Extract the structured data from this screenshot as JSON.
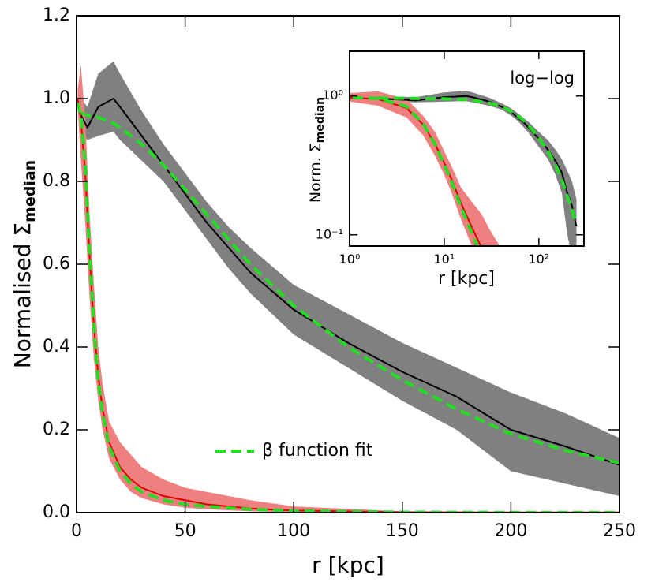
{
  "chart_data": {
    "type": "line",
    "xlabel": "r [kpc]",
    "ylabel": "Normalised Σ",
    "ylabel_sub": "median",
    "xlim": [
      0,
      250
    ],
    "ylim": [
      0,
      1.2
    ],
    "xticks": [
      0,
      50,
      100,
      150,
      200,
      250
    ],
    "yticks": [
      {
        "value": 0,
        "label": "0.0"
      },
      {
        "value": 0.2,
        "label": "0.2"
      },
      {
        "value": 0.4,
        "label": "0.4"
      },
      {
        "value": 0.6,
        "label": "0.6"
      },
      {
        "value": 0.8,
        "label": "0.8"
      },
      {
        "value": 1,
        "label": "1.0"
      },
      {
        "value": 1.2,
        "label": "1.2"
      }
    ],
    "fit_legend": "β function fit",
    "series": [
      {
        "color": "#000000",
        "band_color": "#808080",
        "fit_color": "#22dd22",
        "x": [
          2,
          5,
          10,
          17,
          20,
          30,
          40,
          50,
          60,
          70,
          80,
          100,
          125,
          150,
          175,
          200,
          225,
          250
        ],
        "values": [
          0.96,
          0.93,
          0.98,
          1.0,
          0.98,
          0.91,
          0.84,
          0.77,
          0.7,
          0.64,
          0.58,
          0.49,
          0.41,
          0.34,
          0.28,
          0.2,
          0.16,
          0.115
        ],
        "lower": [
          0.92,
          0.9,
          0.91,
          0.92,
          0.9,
          0.85,
          0.8,
          0.73,
          0.66,
          0.59,
          0.53,
          0.43,
          0.35,
          0.27,
          0.2,
          0.1,
          0.07,
          0.04
        ],
        "upper": [
          1.0,
          0.98,
          1.06,
          1.09,
          1.06,
          0.97,
          0.89,
          0.82,
          0.75,
          0.69,
          0.64,
          0.55,
          0.48,
          0.41,
          0.35,
          0.29,
          0.24,
          0.18
        ],
        "fit": [
          0.965,
          0.96,
          0.955,
          0.94,
          0.93,
          0.89,
          0.84,
          0.78,
          0.72,
          0.66,
          0.6,
          0.5,
          0.4,
          0.32,
          0.25,
          0.19,
          0.15,
          0.12
        ]
      },
      {
        "color": "#dd0000",
        "band_color": "#f08080",
        "fit_color": "#22dd22",
        "x": [
          0.5,
          2,
          4,
          6,
          8,
          10,
          12,
          15,
          20,
          25,
          30,
          40,
          50,
          60,
          80,
          100,
          150,
          200,
          250
        ],
        "values": [
          1.0,
          0.95,
          0.82,
          0.62,
          0.45,
          0.33,
          0.25,
          0.17,
          0.11,
          0.08,
          0.06,
          0.04,
          0.03,
          0.02,
          0.01,
          0.005,
          0.001,
          0.0005,
          0.0005
        ],
        "lower": [
          0.98,
          0.85,
          0.7,
          0.52,
          0.37,
          0.27,
          0.2,
          0.13,
          0.08,
          0.05,
          0.035,
          0.02,
          0.012,
          0.008,
          0.003,
          0.001,
          0.0002,
          0.0002,
          0.0002
        ],
        "upper": [
          1.02,
          1.08,
          0.95,
          0.72,
          0.55,
          0.4,
          0.31,
          0.22,
          0.17,
          0.14,
          0.11,
          0.08,
          0.06,
          0.05,
          0.03,
          0.015,
          0.003,
          0.001,
          0.001
        ],
        "fit": [
          0.99,
          0.96,
          0.84,
          0.63,
          0.45,
          0.32,
          0.24,
          0.16,
          0.1,
          0.07,
          0.05,
          0.03,
          0.02,
          0.015,
          0.008,
          0.004,
          0.001,
          0.0005,
          0.0005
        ]
      }
    ],
    "inset": {
      "type": "line",
      "log_x": true,
      "log_y": true,
      "xlim": [
        1,
        300
      ],
      "ylim": [
        0.083,
        2.1
      ],
      "xticks": [
        {
          "value": 1,
          "label": "10⁰"
        },
        {
          "value": 10,
          "label": "10¹"
        },
        {
          "value": 100,
          "label": "10²"
        }
      ],
      "yticks": [
        {
          "value": 0.1,
          "label": "10⁻¹"
        },
        {
          "value": 1,
          "label": "10⁰"
        }
      ],
      "xlabel": "r [kpc]",
      "ylabel": "Norm. Σ",
      "ylabel_sub": "median",
      "annotation": "log−log"
    }
  }
}
